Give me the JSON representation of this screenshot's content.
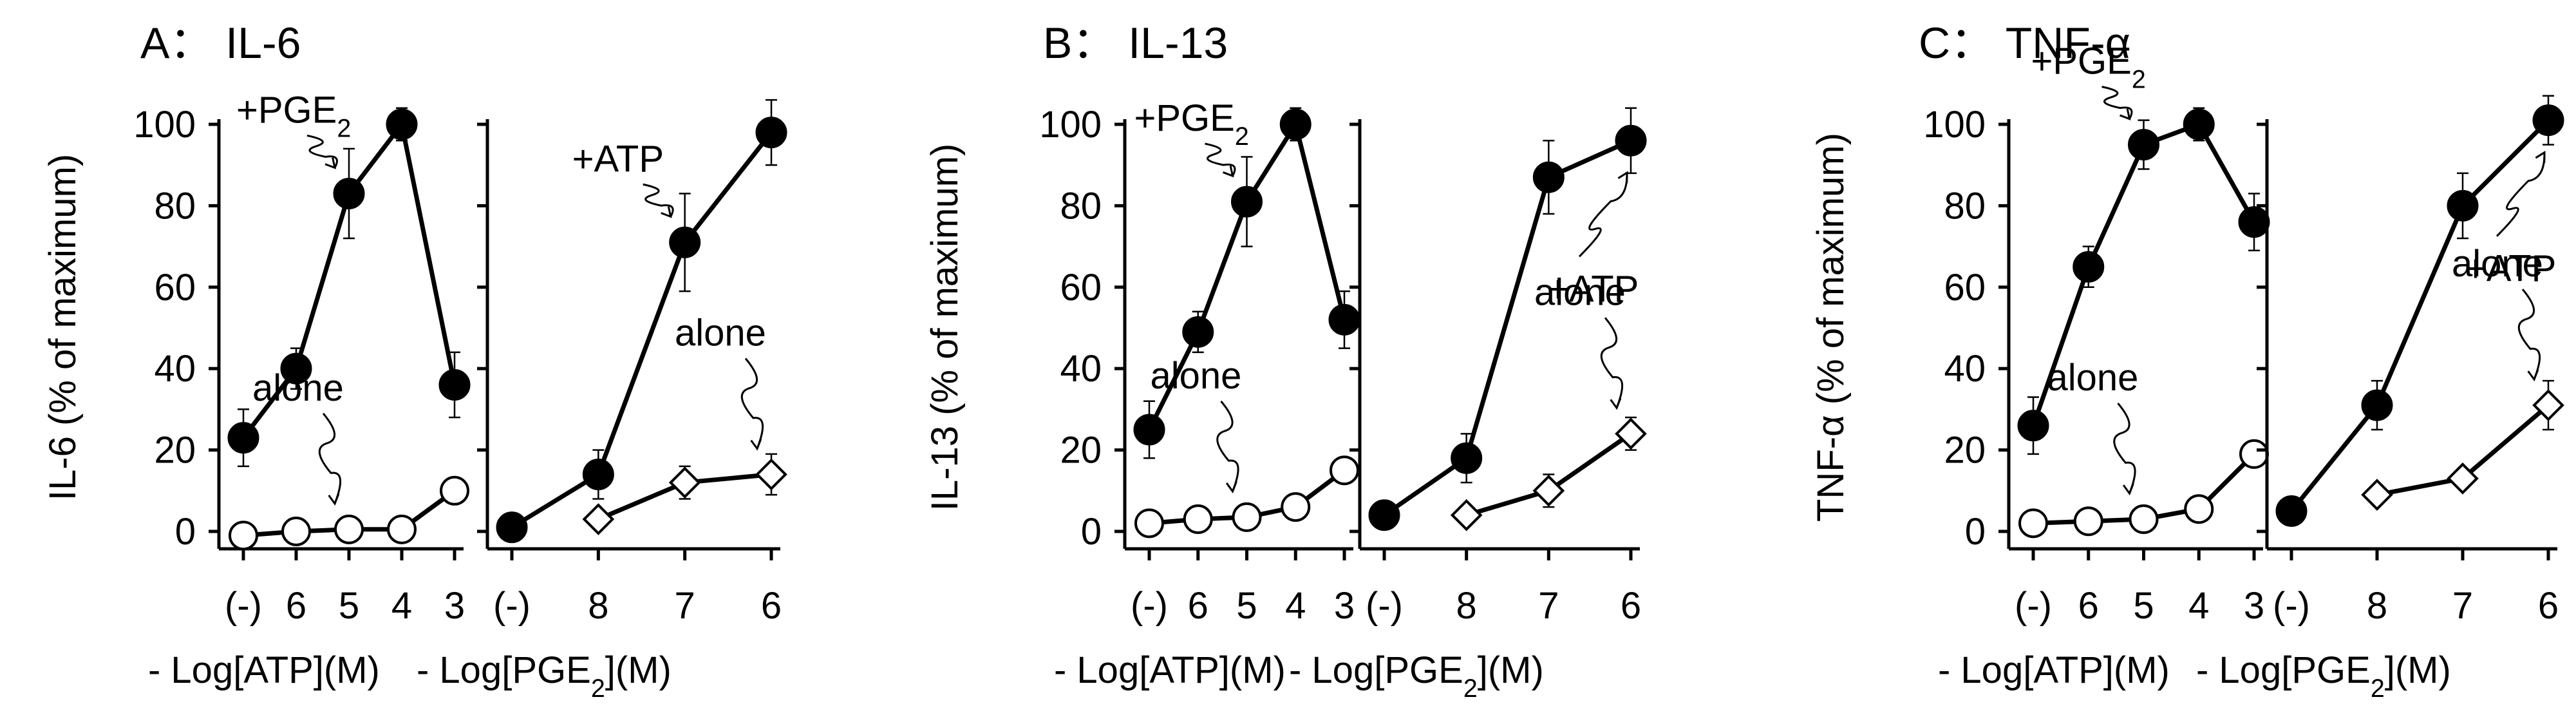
{
  "chart_data": [
    {
      "type": "line",
      "panel_label": "A： IL-6",
      "ylabel": "IL-6 (% of maximum)",
      "ylim": [
        0,
        100
      ],
      "yticks": [
        "0",
        "20",
        "40",
        "60",
        "80",
        "100"
      ],
      "subplots": [
        {
          "xlabel": "- Log[ATP](M)",
          "categories": [
            "(-)",
            "6",
            "5",
            "4",
            "3"
          ],
          "series": [
            {
              "name": "+PGE2",
              "marker": "filled-circle",
              "values": [
                23,
                40,
                83,
                100,
                36
              ],
              "err": [
                7,
                5,
                11,
                4,
                8
              ]
            },
            {
              "name": "alone",
              "marker": "open-circle",
              "values": [
                -1,
                0,
                0.5,
                0.5,
                10
              ],
              "err": [
                0,
                0,
                0,
                0,
                0
              ]
            }
          ],
          "annotations": [
            {
              "text": "+PGE₂",
              "series": 0,
              "point": 2
            },
            {
              "text": "alone",
              "series": 1,
              "point": 2
            }
          ]
        },
        {
          "xlabel": "- Log[PGE₂](M)",
          "categories": [
            "(-)",
            "8",
            "7",
            "6"
          ],
          "series": [
            {
              "name": "+ATP",
              "marker": "filled-circle",
              "values": [
                1,
                14,
                71,
                98
              ],
              "err": [
                0,
                6,
                12,
                8
              ]
            },
            {
              "name": "alone",
              "marker": "open-diamond",
              "values": [
                null,
                3,
                12,
                14
              ],
              "err": [
                0,
                0,
                4,
                5
              ]
            }
          ],
          "annotations": [
            {
              "text": "+ATP",
              "series": 0,
              "point": 2
            },
            {
              "text": "alone",
              "series": 1,
              "point": 3
            }
          ]
        }
      ]
    },
    {
      "type": "line",
      "panel_label": "B： IL-13",
      "ylabel": "IL-13 (% of maximum)",
      "ylim": [
        0,
        100
      ],
      "yticks": [
        "0",
        "20",
        "40",
        "60",
        "80",
        "100"
      ],
      "subplots": [
        {
          "xlabel": "- Log[ATP](M)",
          "categories": [
            "(-)",
            "6",
            "5",
            "4",
            "3"
          ],
          "series": [
            {
              "name": "+PGE2",
              "marker": "filled-circle",
              "values": [
                25,
                49,
                81,
                100,
                52
              ],
              "err": [
                7,
                5,
                11,
                4,
                7
              ]
            },
            {
              "name": "alone",
              "marker": "open-circle",
              "values": [
                2,
                3,
                3.5,
                6,
                15
              ],
              "err": [
                0,
                0,
                0,
                0,
                0
              ]
            }
          ],
          "annotations": [
            {
              "text": "+PGE₂",
              "series": 0,
              "point": 2
            },
            {
              "text": "alone",
              "series": 1,
              "point": 2
            }
          ]
        },
        {
          "xlabel": "- Log[PGE₂](M)",
          "categories": [
            "(-)",
            "8",
            "7",
            "6"
          ],
          "series": [
            {
              "name": "+ATP",
              "marker": "filled-circle",
              "values": [
                4,
                18,
                87,
                96
              ],
              "err": [
                0,
                6,
                9,
                8
              ]
            },
            {
              "name": "alone",
              "marker": "open-diamond",
              "values": [
                null,
                4,
                10,
                24
              ],
              "err": [
                0,
                0,
                4,
                4
              ]
            }
          ],
          "annotations": [
            {
              "text": "+ATP",
              "series": 0,
              "point": 3
            },
            {
              "text": "alone",
              "series": 1,
              "point": 3
            }
          ]
        }
      ]
    },
    {
      "type": "line",
      "panel_label": "C： TNF-α",
      "ylabel": "TNF-α (% of maximum)",
      "ylim": [
        0,
        100
      ],
      "yticks": [
        "0",
        "20",
        "40",
        "60",
        "80",
        "100"
      ],
      "subplots": [
        {
          "xlabel": "- Log[ATP](M)",
          "categories": [
            "(-)",
            "6",
            "5",
            "4",
            "3"
          ],
          "series": [
            {
              "name": "+PGE2",
              "marker": "filled-circle",
              "values": [
                26,
                65,
                95,
                100,
                76
              ],
              "err": [
                7,
                5,
                6,
                4,
                7
              ]
            },
            {
              "name": "alone",
              "marker": "open-circle",
              "values": [
                2,
                2.5,
                3,
                5.5,
                19
              ],
              "err": [
                0,
                0,
                0,
                0,
                0
              ]
            }
          ],
          "annotations": [
            {
              "text": "+PGE₂",
              "series": 0,
              "point": 2
            },
            {
              "text": "alone",
              "series": 1,
              "point": 2
            }
          ]
        },
        {
          "xlabel": "- Log[PGE₂](M)",
          "categories": [
            "(-)",
            "8",
            "7",
            "6"
          ],
          "series": [
            {
              "name": "+ATP",
              "marker": "filled-circle",
              "values": [
                5,
                31,
                80,
                101
              ],
              "err": [
                0,
                6,
                8,
                6
              ]
            },
            {
              "name": "alone",
              "marker": "open-diamond",
              "values": [
                null,
                9,
                13,
                31
              ],
              "err": [
                0,
                0,
                2,
                6
              ]
            }
          ],
          "annotations": [
            {
              "text": "+ATP",
              "series": 0,
              "point": 3
            },
            {
              "text": "alone",
              "series": 1,
              "point": 3
            }
          ]
        }
      ]
    }
  ]
}
